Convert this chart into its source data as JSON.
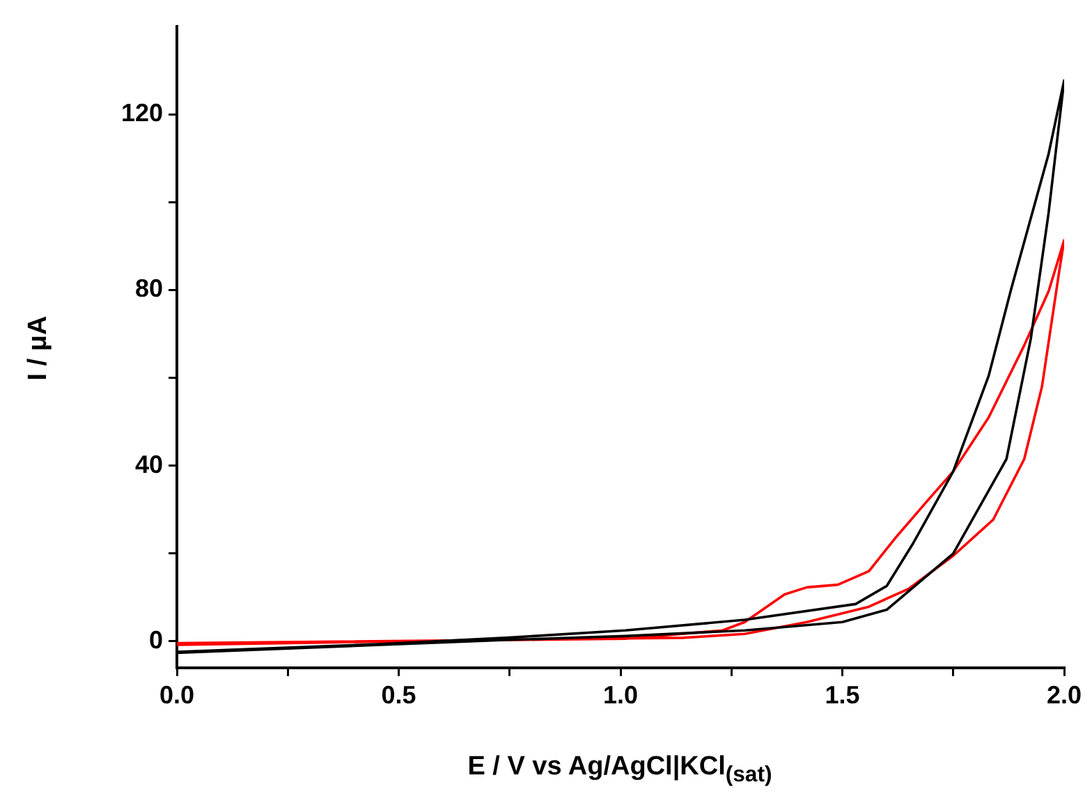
{
  "chart_data": {
    "type": "line",
    "xlabel": "E / V vs Ag/AgCl|KCl$_{(sat)}$",
    "ylabel": "I / μA",
    "xlim": [
      0,
      2
    ],
    "ylim": [
      -6,
      140
    ],
    "xticks": [
      {
        "value": 0,
        "label": "0.0"
      },
      {
        "value": 0.25,
        "label": null
      },
      {
        "value": 0.5,
        "label": "0.5"
      },
      {
        "value": 0.75,
        "label": null
      },
      {
        "value": 1,
        "label": "1.0"
      },
      {
        "value": 1.25,
        "label": null
      },
      {
        "value": 1.5,
        "label": "1.5"
      },
      {
        "value": 1.75,
        "label": null
      },
      {
        "value": 2,
        "label": "2.0"
      }
    ],
    "yticks": [
      0,
      {
        "value": 20,
        "label": null
      },
      40,
      {
        "value": 60,
        "label": null
      },
      80,
      {
        "value": 100,
        "label": null
      },
      120
    ],
    "grid": false,
    "legend": false,
    "marker": "none",
    "series": [
      {
        "color": "#000000",
        "x": [
          0,
          0.74,
          1.01,
          1.28,
          1.5,
          1.6,
          1.75,
          1.87,
          1.925,
          1.965,
          2.0,
          1.965,
          1.88,
          1.83,
          1.75,
          1.66,
          1.6,
          1.53,
          1.28,
          1.01,
          0.74,
          0.46,
          0
        ],
        "values": [
          -2.6,
          0.3,
          1.2,
          2.5,
          4.4,
          7.2,
          20,
          41.5,
          69,
          97.6,
          127.7,
          111,
          80,
          60.5,
          38.7,
          22.4,
          12.6,
          8.5,
          4.9,
          2.5,
          0.8,
          -0.6,
          -2.4
        ]
      },
      {
        "color": "#ff0000",
        "x": [
          0,
          0.74,
          1.01,
          1.23,
          1.28,
          1.37,
          1.42,
          1.49,
          1.56,
          1.62,
          1.69,
          1.75,
          1.83,
          1.91,
          1.965,
          2.0,
          1.99,
          1.95,
          1.91,
          1.84,
          1.75,
          1.65,
          1.56,
          1.42,
          1.28,
          1.14,
          0.74,
          0
        ],
        "values": [
          -0.4,
          0.3,
          0.6,
          2.5,
          4.4,
          10.7,
          12.3,
          12.9,
          16,
          23.6,
          31.8,
          38.7,
          51,
          67.4,
          79.7,
          91.3,
          85,
          58,
          41.5,
          27.7,
          19.5,
          12,
          7.9,
          4.4,
          1.7,
          0.8,
          0.4,
          -0.8
        ]
      }
    ]
  }
}
